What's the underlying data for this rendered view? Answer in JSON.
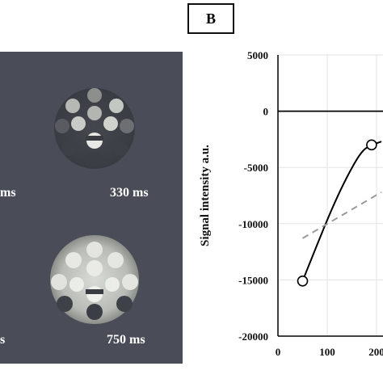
{
  "panel_label": "B",
  "mri": {
    "labels": {
      "left_top_partial": "ms",
      "right_top": "330 ms",
      "left_bottom_partial": "s",
      "right_bottom": "750 ms"
    },
    "colors": {
      "background": "#4a4d57",
      "phantom_bright": "#dfe1dc",
      "phantom_dark": "#3a3c42"
    }
  },
  "chart_data": {
    "type": "line",
    "title": "",
    "xlabel": "",
    "ylabel": "Signal intensity a.u.",
    "xlim": [
      0,
      210
    ],
    "ylim": [
      -20000,
      5000
    ],
    "y_ticks": [
      5000,
      0,
      -5000,
      -10000,
      -15000,
      -20000
    ],
    "y_tick_labels": [
      "5000",
      "0",
      "-5000",
      "-10000",
      "-15000",
      "-20000"
    ],
    "x_ticks": [
      0,
      100,
      200
    ],
    "x_tick_labels": [
      "0",
      "100",
      "200"
    ],
    "grid": true,
    "series": [
      {
        "style": "solid",
        "color": "#000000",
        "x": [
          50,
          80,
          110,
          140,
          170,
          190,
          210
        ],
        "y": [
          -15100,
          -11800,
          -8600,
          -5800,
          -3500,
          -3000,
          -2700
        ]
      },
      {
        "style": "dashed",
        "color": "#9a9a9a",
        "x": [
          50,
          210
        ],
        "y": [
          -11300,
          -7200
        ]
      }
    ],
    "markers": [
      {
        "x": 50,
        "y": -15100
      },
      {
        "x": 190,
        "y": -3000
      }
    ]
  }
}
